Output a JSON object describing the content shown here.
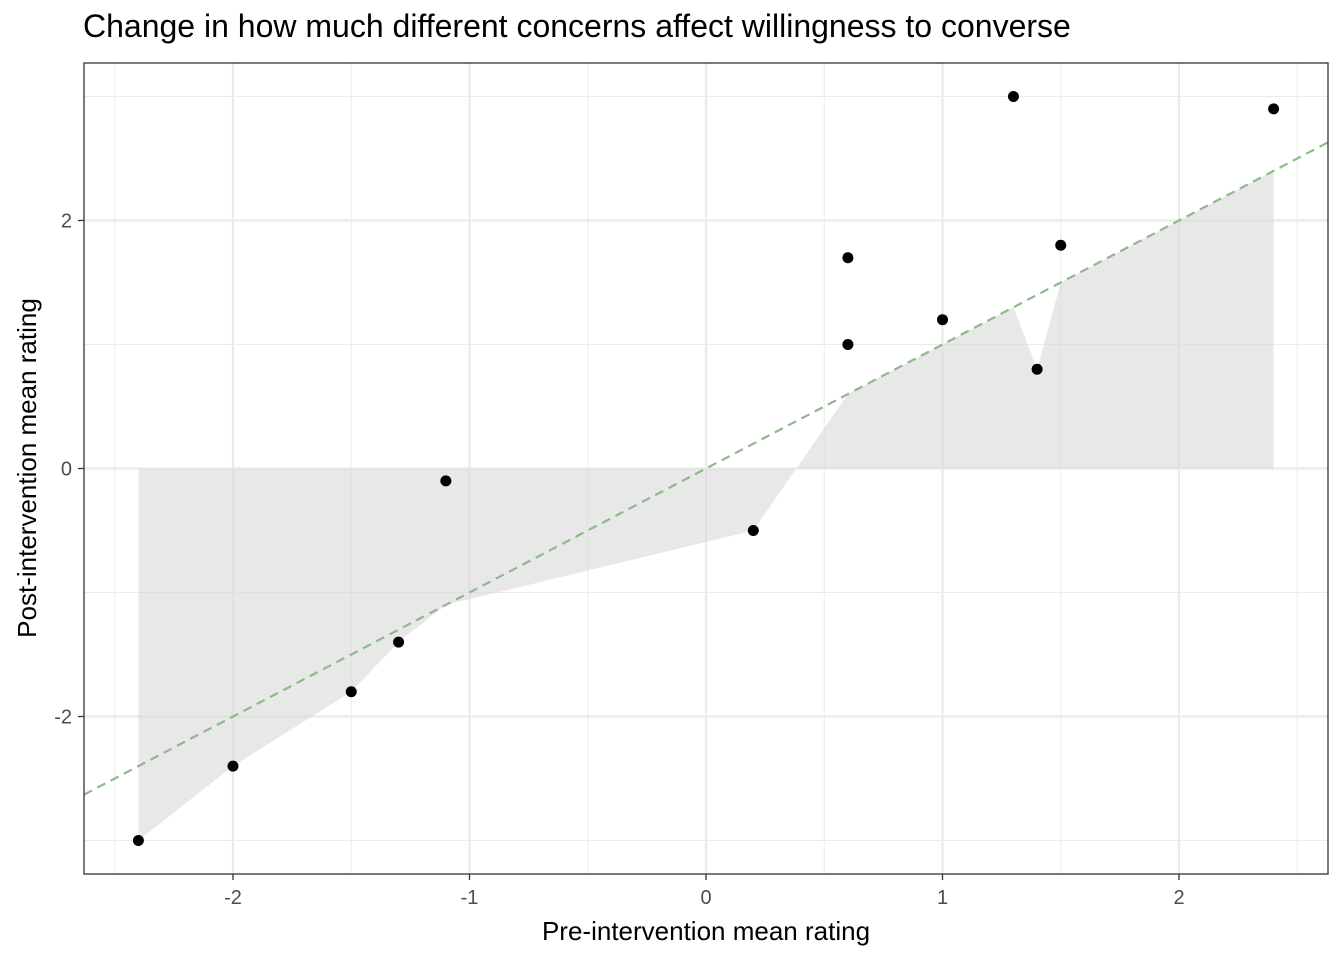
{
  "chart_data": {
    "type": "scatter",
    "title": "Change in how much different concerns affect willingness to converse",
    "xlabel": "Pre-intervention mean rating",
    "ylabel": "Post-intervention mean rating",
    "xlim": [
      -2.63,
      2.63
    ],
    "ylim": [
      -3.27,
      3.27
    ],
    "x_ticks": [
      -2,
      -1,
      0,
      1,
      2
    ],
    "x_tick_labels": [
      "-2",
      "-1",
      "0",
      "1",
      "2"
    ],
    "y_ticks": [
      -2,
      0,
      2
    ],
    "y_tick_labels": [
      "-2",
      "0",
      "2"
    ],
    "grid": true,
    "reference_line": {
      "type": "y = x",
      "style": "dashed",
      "color": "#8fb98a"
    },
    "area": {
      "description_baseline": 0,
      "color": "#d9d9d9"
    },
    "points": [
      {
        "x": -2.4,
        "y": -3.0
      },
      {
        "x": -2.0,
        "y": -2.4
      },
      {
        "x": -1.5,
        "y": -1.8
      },
      {
        "x": -1.3,
        "y": -1.4
      },
      {
        "x": -1.1,
        "y": -0.1
      },
      {
        "x": 0.2,
        "y": -0.5
      },
      {
        "x": 0.6,
        "y": 1.7
      },
      {
        "x": 0.6,
        "y": 1.0
      },
      {
        "x": 1.0,
        "y": 1.2
      },
      {
        "x": 1.3,
        "y": 3.0
      },
      {
        "x": 1.4,
        "y": 0.8
      },
      {
        "x": 1.5,
        "y": 1.8
      },
      {
        "x": 2.4,
        "y": 2.9
      }
    ],
    "area_path": [
      {
        "x": -2.4,
        "y": -3.0
      },
      {
        "x": -2.0,
        "y": -2.4
      },
      {
        "x": -1.5,
        "y": -1.8
      },
      {
        "x": -1.3,
        "y": -1.4
      },
      {
        "x": -1.1,
        "y": -1.1
      },
      {
        "x": 0.2,
        "y": -0.5
      },
      {
        "x": 0.6,
        "y": 0.6
      },
      {
        "x": 1.0,
        "y": 1.0
      },
      {
        "x": 1.3,
        "y": 1.3
      },
      {
        "x": 1.4,
        "y": 0.8
      },
      {
        "x": 1.5,
        "y": 1.5
      },
      {
        "x": 2.4,
        "y": 2.4
      }
    ],
    "colors": {
      "points": "#000000",
      "panel_border": "#333333",
      "grid": "#ebebeb"
    }
  }
}
